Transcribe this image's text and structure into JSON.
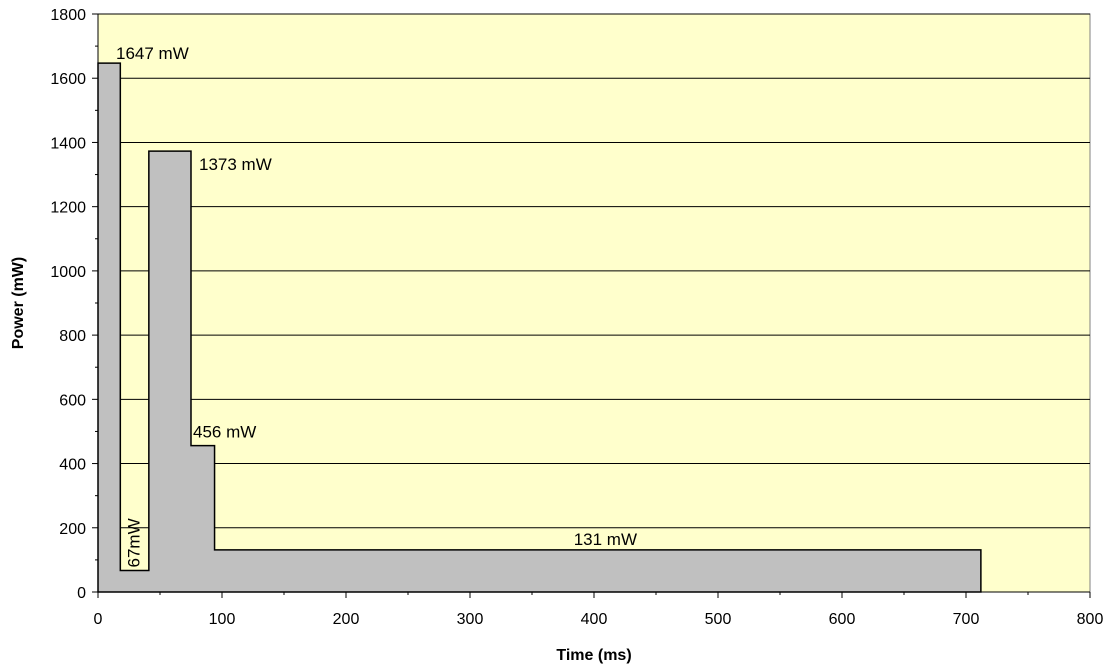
{
  "chart_data": {
    "type": "area",
    "title": "",
    "xlabel": "Time (ms)",
    "ylabel": "Power (mW)",
    "xlim": [
      0,
      800
    ],
    "ylim": [
      0,
      1800
    ],
    "xticks": [
      0,
      100,
      200,
      300,
      400,
      500,
      600,
      700,
      800
    ],
    "yticks": [
      0,
      200,
      400,
      600,
      800,
      1000,
      1200,
      1400,
      1600,
      1800
    ],
    "grid": "horizontal",
    "legend": "none",
    "plot_background": "#ffffcc",
    "fill_color": "#c0c0c0",
    "segments": [
      {
        "start": 0,
        "end": 18,
        "power": 1647
      },
      {
        "start": 18,
        "end": 41,
        "power": 67
      },
      {
        "start": 41,
        "end": 75,
        "power": 1373
      },
      {
        "start": 75,
        "end": 94,
        "power": 456
      },
      {
        "start": 94,
        "end": 712,
        "power": 131
      }
    ],
    "annotations": [
      "1647 mW",
      "67mW",
      "1373 mW",
      "456 mW",
      "131 mW"
    ]
  }
}
